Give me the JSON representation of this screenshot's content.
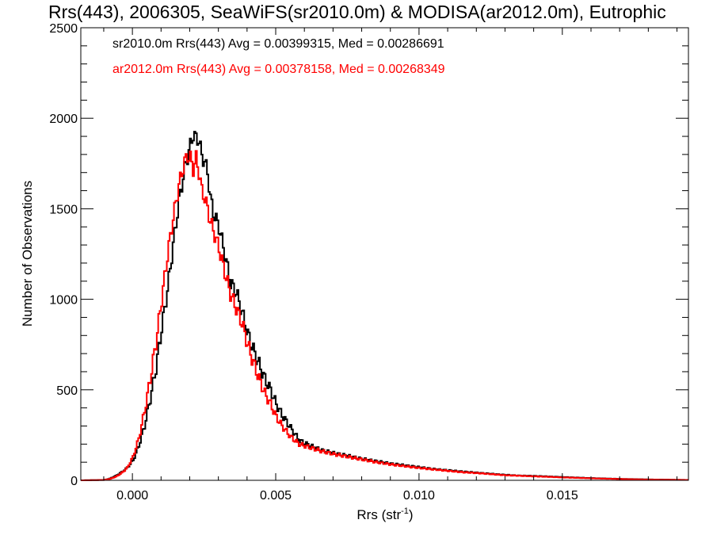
{
  "chart_data": {
    "type": "line",
    "title": "Rrs(443), 2006305, SeaWiFS(sr2010.0m) & MODISA(ar2012.0m), Eutrophic",
    "xlabel": "Rrs (str",
    "xlabel_sup": "-1",
    "xlabel_close": ")",
    "ylabel": "Number of Observations",
    "xlim": [
      -0.0018,
      0.0194
    ],
    "ylim": [
      0,
      2500
    ],
    "x_ticks": [
      0.0,
      0.005,
      0.01,
      0.015
    ],
    "x_tick_labels": [
      "0.000",
      "0.005",
      "0.010",
      "0.015"
    ],
    "y_ticks": [
      0,
      500,
      1000,
      1500,
      2000,
      2500
    ],
    "y_tick_labels": [
      "0",
      "500",
      "1000",
      "1500",
      "2000",
      "2500"
    ],
    "grid": false,
    "legend_position": "top-left",
    "series": [
      {
        "name": "sr2010.0m Rrs(443) Avg = 0.00399315, Med = 0.00286691",
        "color": "#000000",
        "points": [
          [
            -0.0018,
            0
          ],
          [
            -0.001,
            2
          ],
          [
            -0.0008,
            10
          ],
          [
            -0.0006,
            25
          ],
          [
            -0.0004,
            45
          ],
          [
            -0.0002,
            70
          ],
          [
            0.0,
            110
          ],
          [
            0.0002,
            190
          ],
          [
            0.0004,
            300
          ],
          [
            0.0006,
            450
          ],
          [
            0.0008,
            620
          ],
          [
            0.001,
            840
          ],
          [
            0.0012,
            1050
          ],
          [
            0.0014,
            1300
          ],
          [
            0.0016,
            1540
          ],
          [
            0.0018,
            1720
          ],
          [
            0.002,
            1850
          ],
          [
            0.0021,
            1910
          ],
          [
            0.0022,
            1890
          ],
          [
            0.0023,
            1880
          ],
          [
            0.0024,
            1790
          ],
          [
            0.0025,
            1760
          ],
          [
            0.0026,
            1700
          ],
          [
            0.0027,
            1560
          ],
          [
            0.0028,
            1480
          ],
          [
            0.003,
            1400
          ],
          [
            0.0032,
            1250
          ],
          [
            0.0034,
            1090
          ],
          [
            0.0036,
            1040
          ],
          [
            0.0038,
            930
          ],
          [
            0.004,
            810
          ],
          [
            0.0042,
            720
          ],
          [
            0.0044,
            640
          ],
          [
            0.0046,
            560
          ],
          [
            0.0048,
            500
          ],
          [
            0.005,
            420
          ],
          [
            0.0052,
            360
          ],
          [
            0.0055,
            290
          ],
          [
            0.0058,
            220
          ],
          [
            0.0062,
            190
          ],
          [
            0.0066,
            165
          ],
          [
            0.007,
            150
          ],
          [
            0.0075,
            135
          ],
          [
            0.008,
            118
          ],
          [
            0.0085,
            105
          ],
          [
            0.009,
            92
          ],
          [
            0.0095,
            82
          ],
          [
            0.01,
            72
          ],
          [
            0.0105,
            62
          ],
          [
            0.011,
            55
          ],
          [
            0.0115,
            48
          ],
          [
            0.012,
            42
          ],
          [
            0.0125,
            36
          ],
          [
            0.013,
            30
          ],
          [
            0.0135,
            26
          ],
          [
            0.014,
            24
          ],
          [
            0.015,
            18
          ],
          [
            0.016,
            12
          ],
          [
            0.017,
            8
          ],
          [
            0.018,
            5
          ],
          [
            0.0194,
            2
          ]
        ]
      },
      {
        "name": "ar2012.0m Rrs(443) Avg = 0.00378158, Med = 0.00268349",
        "color": "#ff0000",
        "points": [
          [
            -0.0018,
            0
          ],
          [
            -0.001,
            2
          ],
          [
            -0.0008,
            8
          ],
          [
            -0.0006,
            20
          ],
          [
            -0.0004,
            40
          ],
          [
            -0.0002,
            70
          ],
          [
            0.0,
            130
          ],
          [
            0.0002,
            230
          ],
          [
            0.0004,
            380
          ],
          [
            0.0006,
            560
          ],
          [
            0.0008,
            760
          ],
          [
            0.001,
            1000
          ],
          [
            0.0012,
            1240
          ],
          [
            0.0014,
            1450
          ],
          [
            0.0016,
            1630
          ],
          [
            0.0018,
            1760
          ],
          [
            0.0019,
            1790
          ],
          [
            0.002,
            1780
          ],
          [
            0.0021,
            1720
          ],
          [
            0.0022,
            1780
          ],
          [
            0.0023,
            1700
          ],
          [
            0.0024,
            1600
          ],
          [
            0.0025,
            1560
          ],
          [
            0.0026,
            1500
          ],
          [
            0.0027,
            1430
          ],
          [
            0.0028,
            1380
          ],
          [
            0.003,
            1280
          ],
          [
            0.0032,
            1150
          ],
          [
            0.0034,
            1030
          ],
          [
            0.0036,
            950
          ],
          [
            0.0038,
            870
          ],
          [
            0.004,
            750
          ],
          [
            0.0042,
            650
          ],
          [
            0.0044,
            560
          ],
          [
            0.0046,
            480
          ],
          [
            0.0048,
            420
          ],
          [
            0.005,
            350
          ],
          [
            0.0052,
            300
          ],
          [
            0.0055,
            240
          ],
          [
            0.0058,
            200
          ],
          [
            0.0062,
            180
          ],
          [
            0.0066,
            160
          ],
          [
            0.007,
            145
          ],
          [
            0.0075,
            130
          ],
          [
            0.008,
            115
          ],
          [
            0.0085,
            100
          ],
          [
            0.009,
            88
          ],
          [
            0.0095,
            78
          ],
          [
            0.01,
            68
          ],
          [
            0.0105,
            60
          ],
          [
            0.011,
            52
          ],
          [
            0.0115,
            45
          ],
          [
            0.012,
            40
          ],
          [
            0.0125,
            34
          ],
          [
            0.013,
            28
          ],
          [
            0.0135,
            25
          ],
          [
            0.014,
            22
          ],
          [
            0.015,
            16
          ],
          [
            0.016,
            11
          ],
          [
            0.017,
            7
          ],
          [
            0.018,
            4
          ],
          [
            0.0194,
            2
          ]
        ]
      }
    ]
  }
}
